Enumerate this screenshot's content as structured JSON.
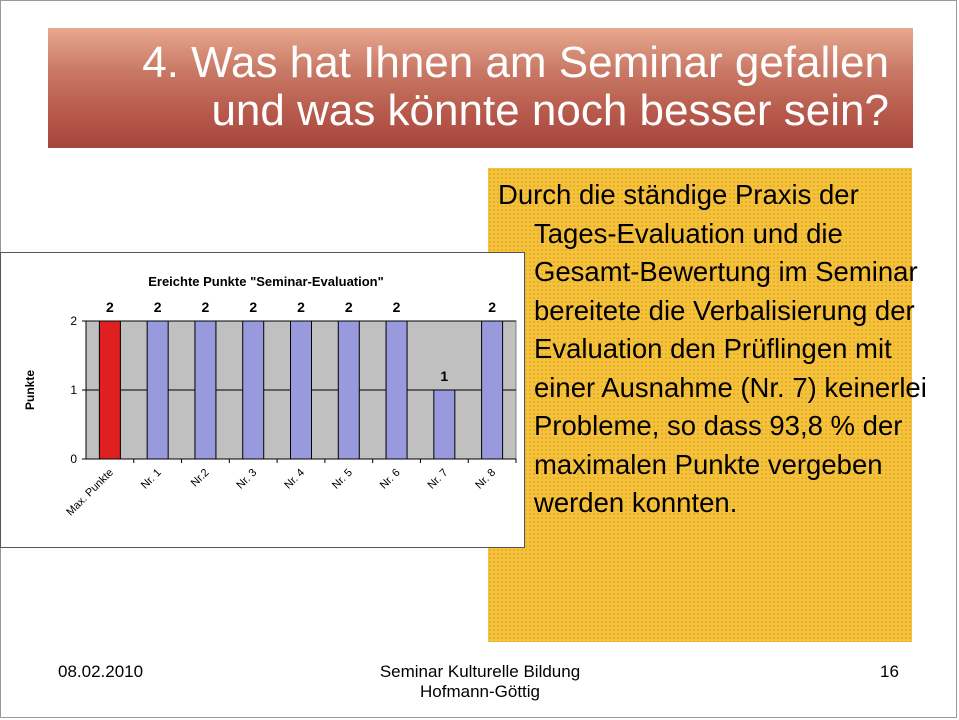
{
  "title": {
    "line1": "4. Was hat Ihnen am Seminar gefallen",
    "line2": "und was könnte noch besser sein?"
  },
  "body_text": "Durch die ständige Praxis der Tages-Evaluation und die Gesamt-Bewertung im Seminar bereitete die Verbalisierung der Evaluation den Prüflingen mit einer Ausnahme (Nr. 7) keinerlei Probleme, so dass 93,8 % der maximalen Punkte vergeben werden konnten.",
  "footer": {
    "date": "08.02.2010",
    "center_line1": "Seminar Kulturelle Bildung",
    "center_line2": "Hofmann-Göttig",
    "page_number": "16"
  },
  "colors": {
    "highlight_bar": "#e02020",
    "default_bar": "#9999dd",
    "plot_background": "#c0c0c0",
    "text_box": "#f7c23b"
  },
  "chart_data": {
    "type": "bar",
    "title": "Ereichte Punkte \"Seminar-Evaluation\"",
    "xlabel": "",
    "ylabel": "Punkte",
    "categories": [
      "Max. Punkte",
      "Nr. 1",
      "Nr.2",
      "Nr. 3",
      "Nr. 4",
      "Nr. 5",
      "Nr. 6",
      "Nr. 7",
      "Nr. 8"
    ],
    "values": [
      2,
      2,
      2,
      2,
      2,
      2,
      2,
      1,
      2
    ],
    "data_labels": [
      "2",
      "2",
      "2",
      "2",
      "2",
      "2",
      "2",
      "1",
      "2"
    ],
    "highlight_index": 0,
    "ylim": [
      0,
      2
    ],
    "yticks": [
      0,
      1,
      2
    ],
    "grid": true
  }
}
